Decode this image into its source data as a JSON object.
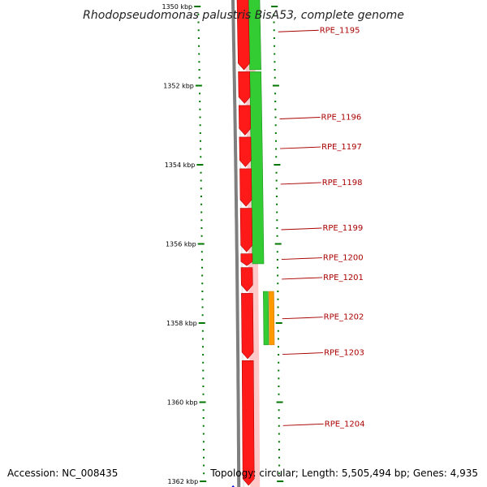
{
  "title": "Rhodopseudomonas palustris BisA53, complete genome",
  "footer": {
    "accession": "Accession: NC_008435",
    "topology": "Topology: circular; Length: 5,505,494 bp; Genes: 4,935"
  },
  "colors": {
    "backbone": "#7f7f7f",
    "forward_gene": "#ff1a1a",
    "reverse_cds": "#33cc33",
    "rna": "#ff9900",
    "tick": "#007700",
    "gene_label": "#aa0000",
    "marker": "#0000ee"
  },
  "chart_data": {
    "type": "genome-map",
    "axis_unit": "kbp",
    "tick_labels": [
      {
        "kbp": 1350,
        "label": "1350 kbp"
      },
      {
        "kbp": 1352,
        "label": "1352 kbp"
      },
      {
        "kbp": 1354,
        "label": "1354 kbp"
      },
      {
        "kbp": 1356,
        "label": "1356 kbp"
      },
      {
        "kbp": 1358,
        "label": "1358 kbp"
      },
      {
        "kbp": 1360,
        "label": "1360 kbp"
      },
      {
        "kbp": 1362,
        "label": "1362 kbp"
      }
    ],
    "genes": [
      {
        "label": "RPE_1195",
        "kbp": 1350.6
      },
      {
        "label": "RPE_1196",
        "kbp": 1352.8
      },
      {
        "label": "RPE_1197",
        "kbp": 1353.55
      },
      {
        "label": "RPE_1198",
        "kbp": 1354.45
      },
      {
        "label": "RPE_1199",
        "kbp": 1355.6
      },
      {
        "label": "RPE_1200",
        "kbp": 1356.35
      },
      {
        "label": "RPE_1201",
        "kbp": 1356.85
      },
      {
        "label": "RPE_1202",
        "kbp": 1357.85
      },
      {
        "label": "RPE_1203",
        "kbp": 1358.75
      },
      {
        "label": "RPE_1204",
        "kbp": 1360.55
      }
    ],
    "forward_features": [
      {
        "start": 1349.6,
        "end": 1351.6
      },
      {
        "start": 1351.65,
        "end": 1352.45
      },
      {
        "start": 1352.5,
        "end": 1353.25
      },
      {
        "start": 1353.3,
        "end": 1354.05
      },
      {
        "start": 1354.1,
        "end": 1355.05
      },
      {
        "start": 1355.1,
        "end": 1356.2
      },
      {
        "start": 1356.25,
        "end": 1356.55
      },
      {
        "start": 1356.6,
        "end": 1357.2
      },
      {
        "start": 1357.25,
        "end": 1358.9
      },
      {
        "start": 1358.95,
        "end": 1362.1
      }
    ],
    "reverse_features": [
      {
        "start": 1349.5,
        "end": 1351.6,
        "kind": "cds"
      },
      {
        "start": 1351.65,
        "end": 1356.5,
        "kind": "cds"
      },
      {
        "start": 1357.2,
        "end": 1358.55,
        "kind": "cds"
      },
      {
        "start": 1357.2,
        "end": 1358.55,
        "kind": "rna"
      }
    ],
    "marker_kbp": 1362.1
  }
}
